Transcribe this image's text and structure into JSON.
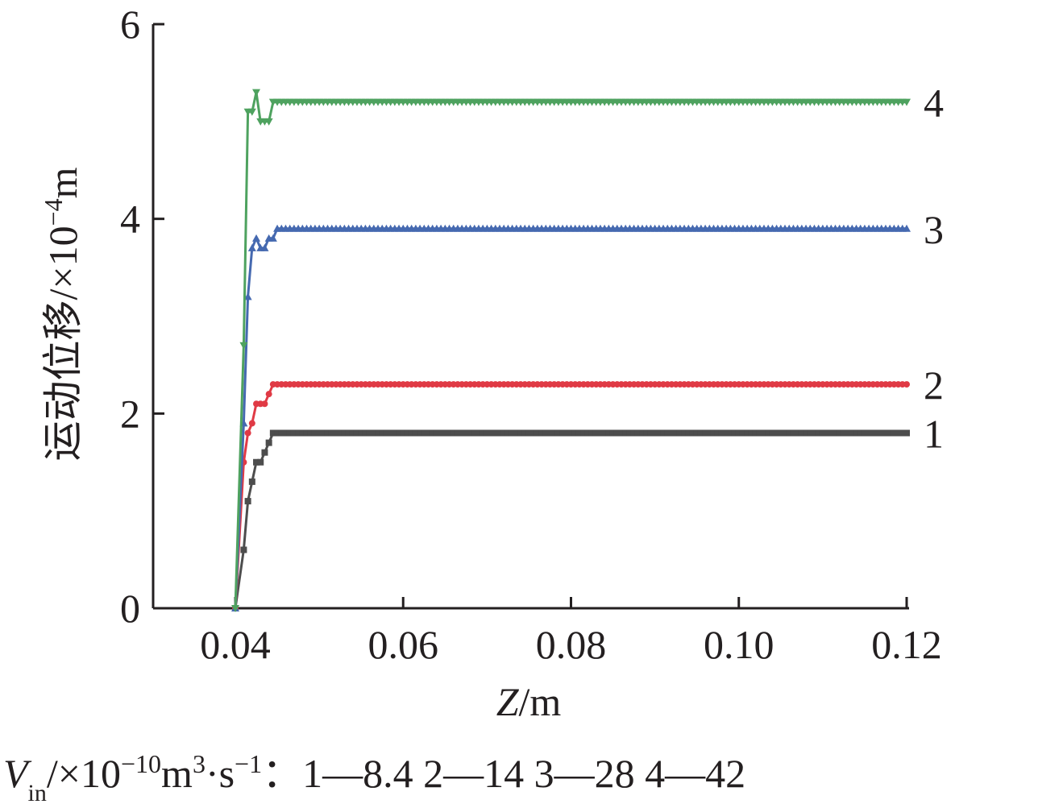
{
  "chart_data": {
    "type": "line",
    "xlabel": {
      "italic": "Z",
      "rest": "/m"
    },
    "ylabel": {
      "text": "运动位移/×10",
      "sup": "−4",
      "unit": "m"
    },
    "xlim": [
      0.03,
      0.12
    ],
    "ylim": [
      0,
      6
    ],
    "x_ticks": [
      0.04,
      0.06,
      0.08,
      0.1,
      0.12
    ],
    "x_tick_labels": [
      "0.04",
      "0.06",
      "0.08",
      "0.10",
      "0.12"
    ],
    "y_ticks": [
      0,
      2,
      4,
      6
    ],
    "y_tick_labels": [
      "0",
      "2",
      "4",
      "6"
    ],
    "grid": false,
    "legend_note": {
      "var": "V",
      "var_sub": "in",
      "prefix": "/×10",
      "exp1": "−10",
      "unit1": "m",
      "exp2": "3",
      "mid": "·s",
      "exp3": "−1",
      "items": "：1—8.4    2—14    3—28    4—42"
    },
    "series": [
      {
        "name": "1",
        "color": "#4d4d4d",
        "marker": "square",
        "points": [
          [
            0.04,
            0.0
          ],
          [
            0.041,
            0.6
          ],
          [
            0.0415,
            1.1
          ],
          [
            0.042,
            1.3
          ],
          [
            0.0425,
            1.5
          ],
          [
            0.043,
            1.5
          ],
          [
            0.0435,
            1.6
          ],
          [
            0.044,
            1.7
          ],
          [
            0.0445,
            1.8
          ],
          [
            0.045,
            1.8
          ],
          [
            0.12,
            1.8
          ]
        ]
      },
      {
        "name": "2",
        "color": "#e03a45",
        "marker": "circle",
        "points": [
          [
            0.04,
            0.0
          ],
          [
            0.041,
            1.5
          ],
          [
            0.0415,
            1.8
          ],
          [
            0.042,
            1.9
          ],
          [
            0.0425,
            2.1
          ],
          [
            0.043,
            2.1
          ],
          [
            0.0435,
            2.1
          ],
          [
            0.044,
            2.2
          ],
          [
            0.0445,
            2.3
          ],
          [
            0.045,
            2.3
          ],
          [
            0.12,
            2.3
          ]
        ]
      },
      {
        "name": "3",
        "color": "#4569b0",
        "marker": "triangle-up",
        "points": [
          [
            0.04,
            0.0
          ],
          [
            0.041,
            1.9
          ],
          [
            0.0415,
            3.2
          ],
          [
            0.042,
            3.7
          ],
          [
            0.0425,
            3.8
          ],
          [
            0.043,
            3.7
          ],
          [
            0.0435,
            3.7
          ],
          [
            0.044,
            3.8
          ],
          [
            0.0445,
            3.8
          ],
          [
            0.045,
            3.9
          ],
          [
            0.12,
            3.9
          ]
        ]
      },
      {
        "name": "4",
        "color": "#4ea25f",
        "marker": "triangle-down",
        "points": [
          [
            0.04,
            0.0
          ],
          [
            0.041,
            2.7
          ],
          [
            0.0415,
            5.1
          ],
          [
            0.042,
            5.1
          ],
          [
            0.0425,
            5.3
          ],
          [
            0.043,
            5.0
          ],
          [
            0.0435,
            5.0
          ],
          [
            0.044,
            5.0
          ],
          [
            0.0445,
            5.2
          ],
          [
            0.045,
            5.2
          ],
          [
            0.12,
            5.2
          ]
        ]
      }
    ]
  }
}
